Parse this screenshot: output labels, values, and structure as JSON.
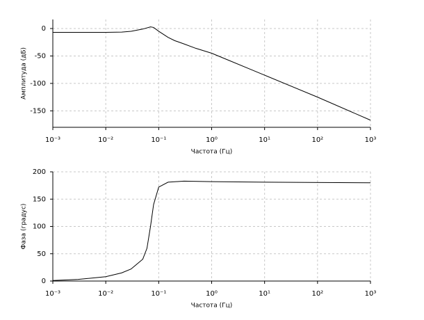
{
  "chart_data": [
    {
      "type": "line",
      "xscale": "log",
      "grid": true,
      "color": "#000000",
      "ylabel": "Амплитуда (дБ)",
      "xlabel": "Частота (Гц)",
      "x": [
        0.001,
        0.01,
        0.02,
        0.03,
        0.05,
        0.07,
        0.08,
        0.1,
        0.15,
        0.2,
        0.3,
        0.5,
        1,
        2,
        5,
        10,
        100,
        1000
      ],
      "values": [
        -7,
        -7,
        -6.5,
        -5,
        -1,
        3,
        2,
        -5,
        -16,
        -22,
        -28,
        -36,
        -45,
        -57,
        -73,
        -85,
        -125,
        -167
      ],
      "xlim": [
        0.001,
        1000
      ],
      "xticks": [
        {
          "value": 0.001,
          "label": "10⁻³"
        },
        {
          "value": 0.01,
          "label": "10⁻²"
        },
        {
          "value": 0.1,
          "label": "10⁻¹"
        },
        {
          "value": 1,
          "label": "10⁰"
        },
        {
          "value": 10,
          "label": "10¹"
        },
        {
          "value": 100,
          "label": "10²"
        },
        {
          "value": 1000,
          "label": "10³"
        }
      ],
      "ylim": [
        -180,
        16.5
      ],
      "yticks": [
        -150,
        -100,
        -50,
        0
      ]
    },
    {
      "type": "line",
      "xscale": "log",
      "grid": true,
      "color": "#000000",
      "ylabel": "Фаза (градус)",
      "xlabel": "Частота (Гц)",
      "x": [
        0.001,
        0.003,
        0.01,
        0.02,
        0.03,
        0.05,
        0.06,
        0.07,
        0.08,
        0.1,
        0.15,
        0.3,
        1,
        10,
        1000
      ],
      "values": [
        1,
        3,
        8,
        15,
        22,
        40,
        60,
        100,
        140,
        172,
        181,
        183,
        182,
        181,
        180
      ],
      "xlim": [
        0.001,
        1000
      ],
      "xticks": [
        {
          "value": 0.001,
          "label": "10⁻³"
        },
        {
          "value": 0.01,
          "label": "10⁻²"
        },
        {
          "value": 0.1,
          "label": "10⁻¹"
        },
        {
          "value": 1,
          "label": "10⁰"
        },
        {
          "value": 10,
          "label": "10¹"
        },
        {
          "value": 100,
          "label": "10²"
        },
        {
          "value": 1000,
          "label": "10³"
        }
      ],
      "ylim": [
        0,
        200
      ],
      "yticks": [
        0,
        50,
        100,
        150,
        200
      ]
    }
  ]
}
